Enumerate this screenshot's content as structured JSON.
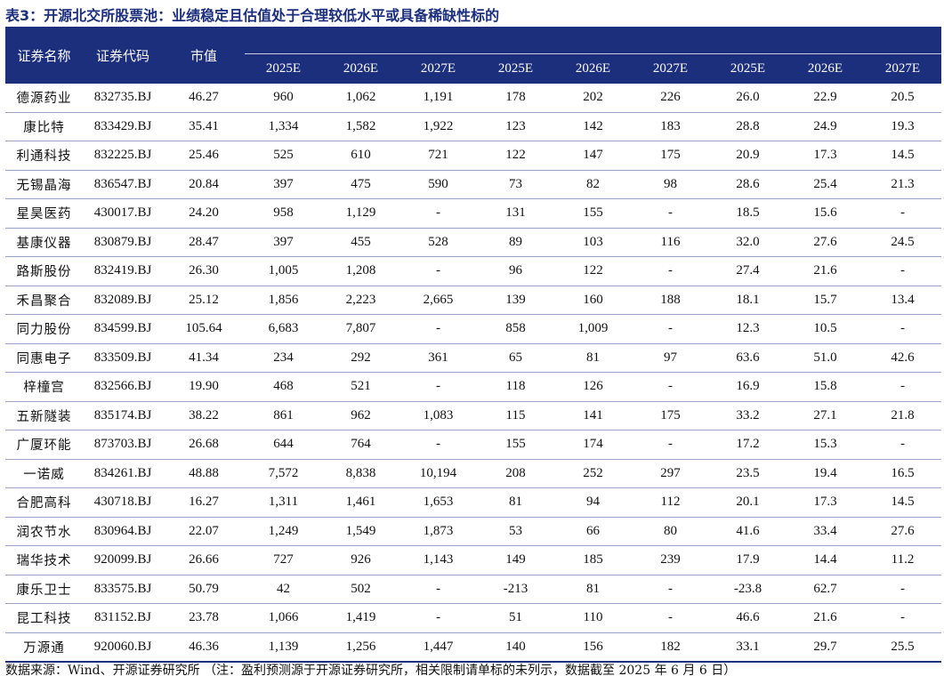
{
  "title": "表3：开源北交所股票池：业绩稳定且估值处于合理较低水平或具备稀缺性标的",
  "table": {
    "headers": {
      "name": "证券名称",
      "code": "证券代码",
      "mktcap": "市值",
      "group_a": "",
      "group_b": "",
      "group_c": "",
      "years": [
        "2025E",
        "2026E",
        "2027E",
        "2025E",
        "2026E",
        "2027E",
        "2025E",
        "2026E",
        "2027E"
      ]
    },
    "rows": [
      [
        "德源药业",
        "832735.BJ",
        "46.27",
        "960",
        "1,062",
        "1,191",
        "178",
        "202",
        "226",
        "26.0",
        "22.9",
        "20.5"
      ],
      [
        "康比特",
        "833429.BJ",
        "35.41",
        "1,334",
        "1,582",
        "1,922",
        "123",
        "142",
        "183",
        "28.8",
        "24.9",
        "19.3"
      ],
      [
        "利通科技",
        "832225.BJ",
        "25.46",
        "525",
        "610",
        "721",
        "122",
        "147",
        "175",
        "20.9",
        "17.3",
        "14.5"
      ],
      [
        "无锡晶海",
        "836547.BJ",
        "20.84",
        "397",
        "475",
        "590",
        "73",
        "82",
        "98",
        "28.6",
        "25.4",
        "21.3"
      ],
      [
        "星昊医药",
        "430017.BJ",
        "24.20",
        "958",
        "1,129",
        "-",
        "131",
        "155",
        "-",
        "18.5",
        "15.6",
        "-"
      ],
      [
        "基康仪器",
        "830879.BJ",
        "28.47",
        "397",
        "455",
        "528",
        "89",
        "103",
        "116",
        "32.0",
        "27.6",
        "24.5"
      ],
      [
        "路斯股份",
        "832419.BJ",
        "26.30",
        "1,005",
        "1,208",
        "-",
        "96",
        "122",
        "-",
        "27.4",
        "21.6",
        "-"
      ],
      [
        "禾昌聚合",
        "832089.BJ",
        "25.12",
        "1,856",
        "2,223",
        "2,665",
        "139",
        "160",
        "188",
        "18.1",
        "15.7",
        "13.4"
      ],
      [
        "同力股份",
        "834599.BJ",
        "105.64",
        "6,683",
        "7,807",
        "-",
        "858",
        "1,009",
        "-",
        "12.3",
        "10.5",
        "-"
      ],
      [
        "同惠电子",
        "833509.BJ",
        "41.34",
        "234",
        "292",
        "361",
        "65",
        "81",
        "97",
        "63.6",
        "51.0",
        "42.6"
      ],
      [
        "梓橦宫",
        "832566.BJ",
        "19.90",
        "468",
        "521",
        "-",
        "118",
        "126",
        "-",
        "16.9",
        "15.8",
        "-"
      ],
      [
        "五新隧装",
        "835174.BJ",
        "38.22",
        "861",
        "962",
        "1,083",
        "115",
        "141",
        "175",
        "33.2",
        "27.1",
        "21.8"
      ],
      [
        "广厦环能",
        "873703.BJ",
        "26.68",
        "644",
        "764",
        "-",
        "155",
        "174",
        "-",
        "17.2",
        "15.3",
        "-"
      ],
      [
        "一诺威",
        "834261.BJ",
        "48.88",
        "7,572",
        "8,838",
        "10,194",
        "208",
        "252",
        "297",
        "23.5",
        "19.4",
        "16.5"
      ],
      [
        "合肥高科",
        "430718.BJ",
        "16.27",
        "1,311",
        "1,461",
        "1,653",
        "81",
        "94",
        "112",
        "20.1",
        "17.3",
        "14.5"
      ],
      [
        "润农节水",
        "830964.BJ",
        "22.07",
        "1,249",
        "1,549",
        "1,873",
        "53",
        "66",
        "80",
        "41.6",
        "33.4",
        "27.6"
      ],
      [
        "瑞华技术",
        "920099.BJ",
        "26.66",
        "727",
        "926",
        "1,143",
        "149",
        "185",
        "239",
        "17.9",
        "14.4",
        "11.2"
      ],
      [
        "康乐卫士",
        "833575.BJ",
        "50.79",
        "42",
        "502",
        "-",
        "-213",
        "81",
        "-",
        "-23.8",
        "62.7",
        "-"
      ],
      [
        "昆工科技",
        "831152.BJ",
        "23.78",
        "1,066",
        "1,419",
        "-",
        "51",
        "110",
        "-",
        "46.6",
        "21.6",
        "-"
      ],
      [
        "万源通",
        "920060.BJ",
        "46.36",
        "1,139",
        "1,256",
        "1,447",
        "140",
        "156",
        "182",
        "33.1",
        "29.7",
        "25.5"
      ]
    ]
  },
  "source": "数据来源：Wind、开源证券研究所 （注：盈利预测源于开源证券研究所，相关限制请单标的未列示，数据截至 2025 年 6 月 6 日）",
  "colors": {
    "header_bg": "#1c2f7c",
    "header_text": "#ffffff",
    "title_text": "#1c2f7c"
  }
}
